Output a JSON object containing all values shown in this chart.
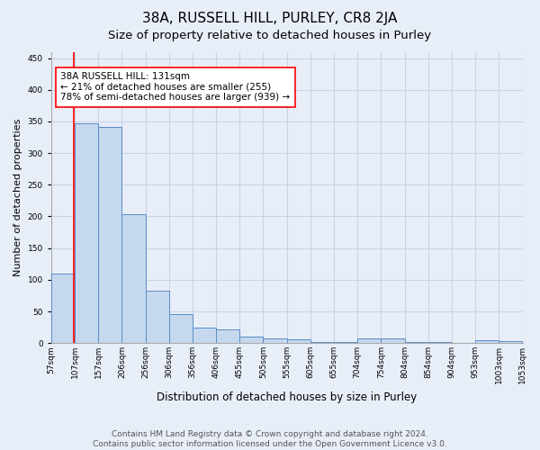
{
  "title": "38A, RUSSELL HILL, PURLEY, CR8 2JA",
  "subtitle": "Size of property relative to detached houses in Purley",
  "xlabel": "Distribution of detached houses by size in Purley",
  "ylabel": "Number of detached properties",
  "footer_line1": "Contains HM Land Registry data © Crown copyright and database right 2024.",
  "footer_line2": "Contains public sector information licensed under the Open Government Licence v3.0.",
  "bar_values": [
    110,
    347,
    341,
    203,
    83,
    46,
    24,
    21,
    10,
    7,
    6,
    2,
    2,
    7,
    7,
    2,
    2,
    0,
    4,
    3
  ],
  "tick_labels": [
    "57sqm",
    "107sqm",
    "157sqm",
    "206sqm",
    "256sqm",
    "306sqm",
    "356sqm",
    "406sqm",
    "455sqm",
    "505sqm",
    "555sqm",
    "605sqm",
    "655sqm",
    "704sqm",
    "754sqm",
    "804sqm",
    "854sqm",
    "904sqm",
    "953sqm",
    "1003sqm",
    "1053sqm"
  ],
  "bar_color": "#c5d8ee",
  "bar_edge_color": "#5b8cc8",
  "annotation_line1": "38A RUSSELL HILL: 131sqm",
  "annotation_line2": "← 21% of detached houses are smaller (255)",
  "annotation_line3": "78% of semi-detached houses are larger (939) →",
  "annotation_box_color": "white",
  "annotation_box_edge": "red",
  "vline_color": "red",
  "vline_x": 0.48,
  "ylim": [
    0,
    460
  ],
  "yticks": [
    0,
    50,
    100,
    150,
    200,
    250,
    300,
    350,
    400,
    450
  ],
  "grid_color": "#c8d4e8",
  "bg_color": "#e8eef8",
  "plot_bg_color": "#e8eef8",
  "title_fontsize": 11,
  "subtitle_fontsize": 9.5,
  "xlabel_fontsize": 8.5,
  "ylabel_fontsize": 8,
  "tick_fontsize": 6.5,
  "annotation_fontsize": 7.5,
  "footer_fontsize": 6.5
}
